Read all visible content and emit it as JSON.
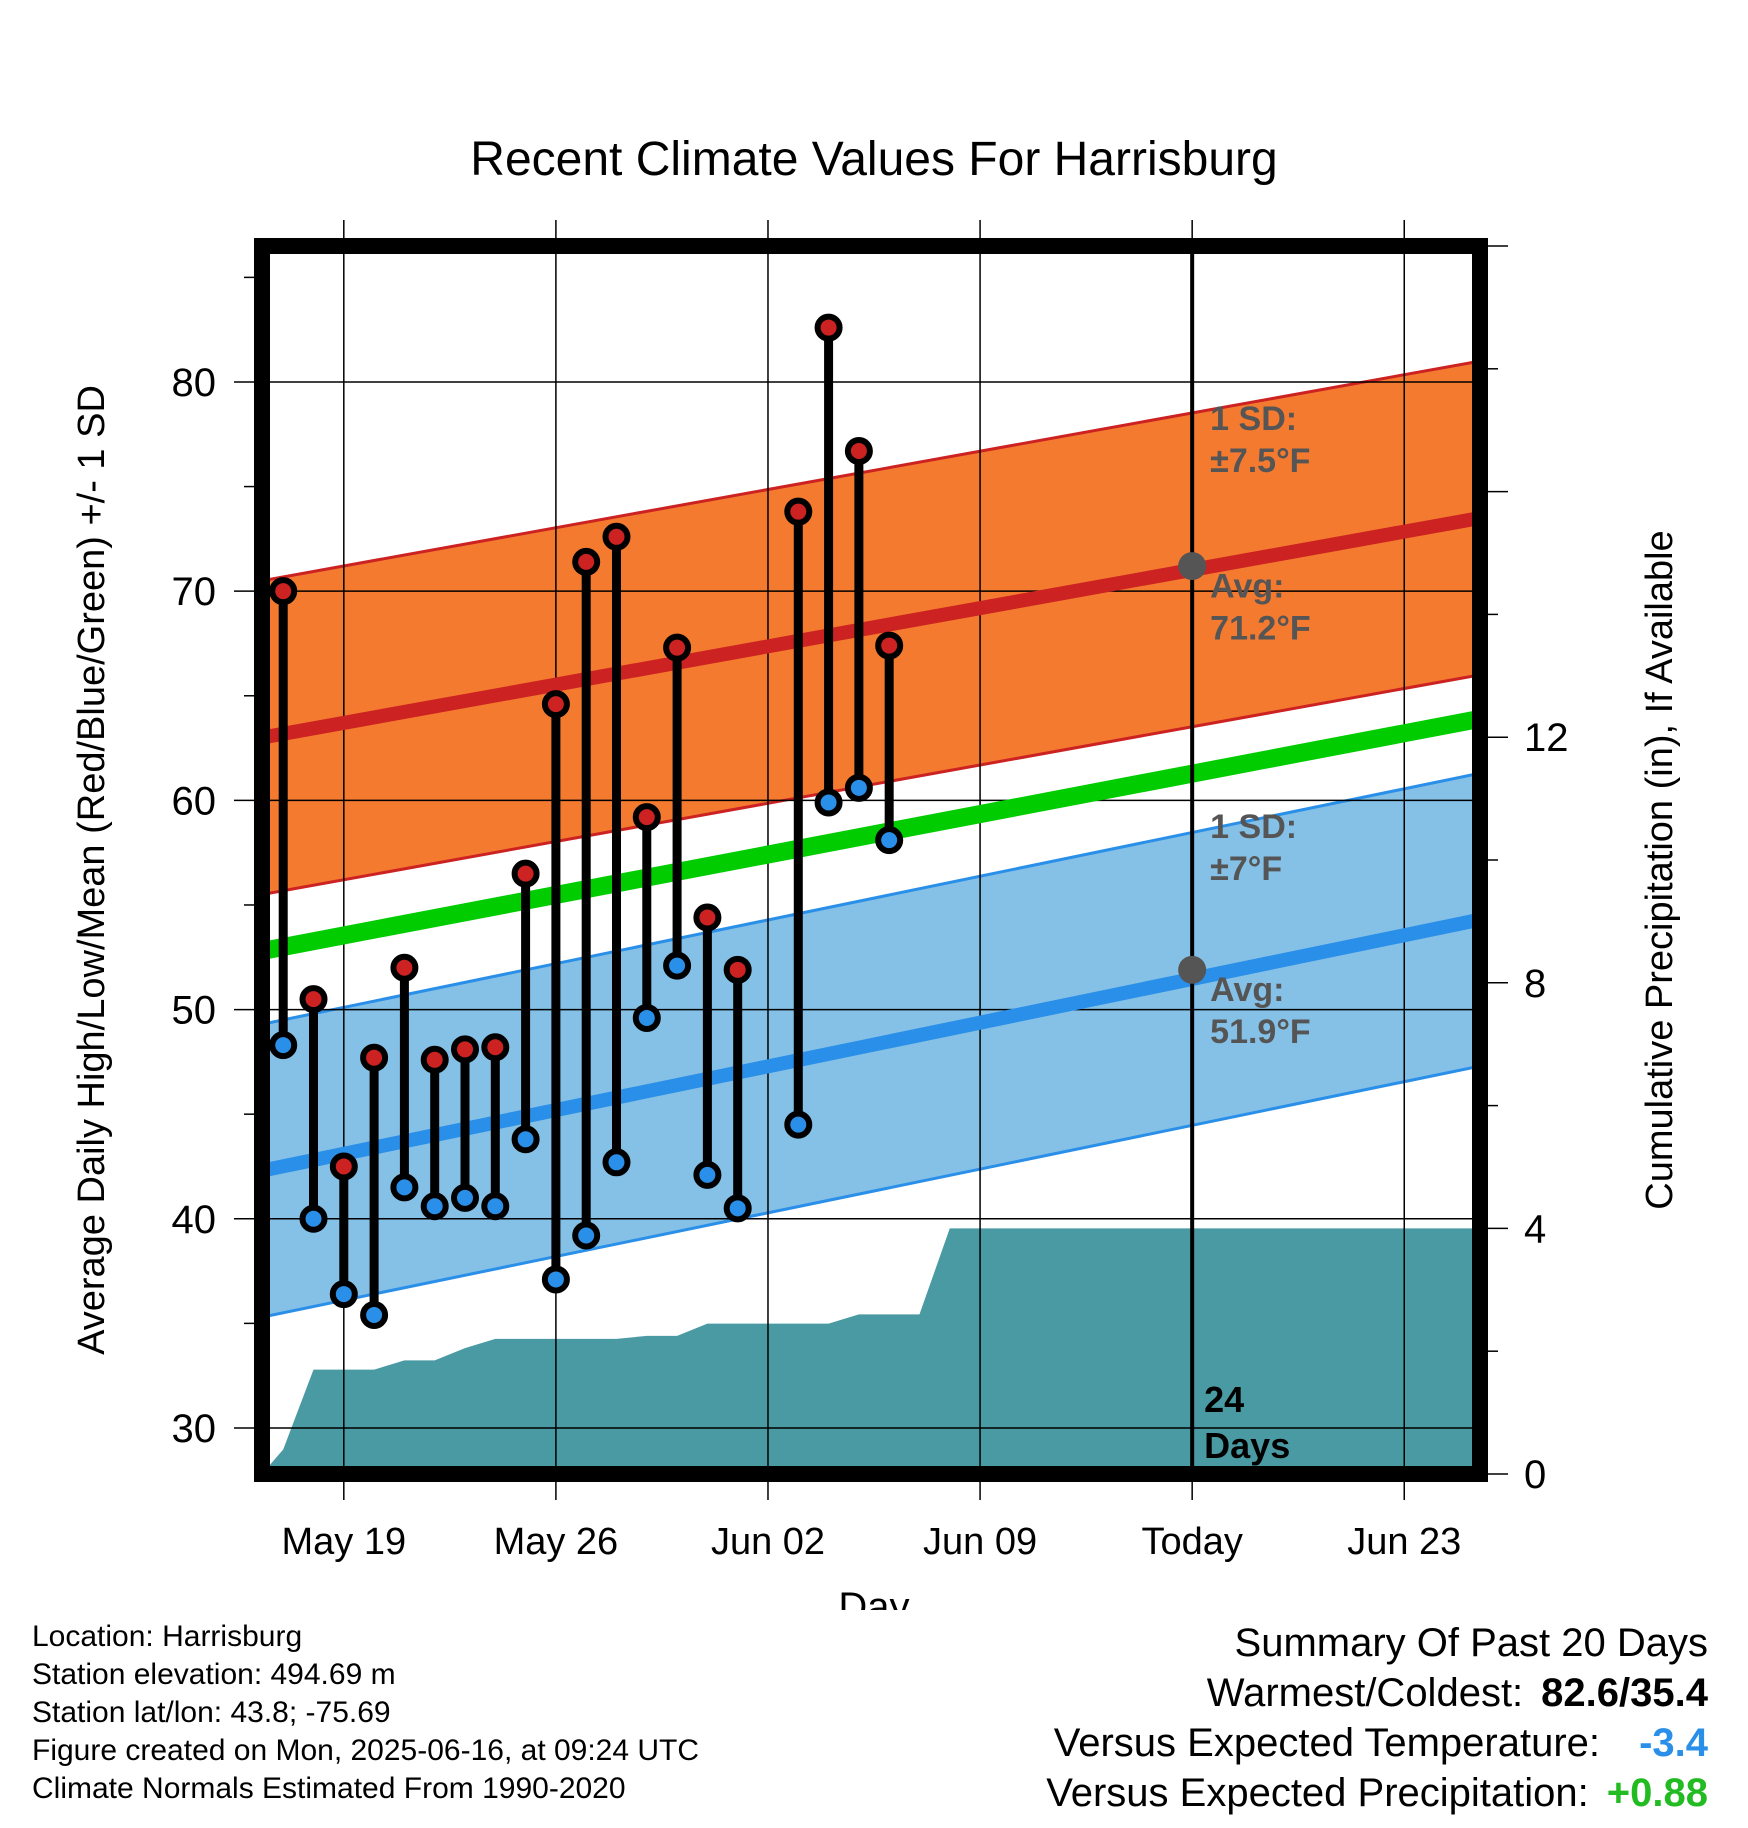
{
  "chart_data": {
    "type": "line",
    "title": "Recent Climate Values For Harrisburg",
    "xlabel": "Day",
    "ylabel": "Average Daily High/Low/Mean (Red/Blue/Green) +/- 1 SD",
    "y2label": "Cumulative Precipitation (in), If Available",
    "x_tick_labels": [
      "May 19",
      "May 26",
      "Jun 02",
      "Jun 09",
      "Today",
      "Jun 23"
    ],
    "x_tick_days": [
      2,
      9,
      16,
      23,
      30,
      37
    ],
    "xlim": [
      -0.7,
      39.5
    ],
    "ylim": [
      27.8,
      86.5
    ],
    "y_ticks": [
      30,
      40,
      50,
      60,
      70,
      80
    ],
    "y2lim": [
      0,
      20
    ],
    "y2_ticks": [
      0,
      4,
      8,
      12
    ],
    "today_day": 30,
    "today_label": "24\nDays",
    "normals": {
      "high_mean_start": 63.0,
      "high_mean_end": 73.5,
      "high_sd": 7.5,
      "low_mean_start": 42.3,
      "low_mean_end": 54.3,
      "low_sd": 7.0,
      "mean_start": 52.8,
      "mean_end": 63.9,
      "today_avg_high": 71.2,
      "today_avg_low": 51.9,
      "high_sd_label": [
        "1 SD:",
        "±7.5°F"
      ],
      "high_avg_label": [
        "Avg:",
        "71.2°F"
      ],
      "low_sd_label": [
        "1 SD:",
        "±7°F"
      ],
      "low_avg_label": [
        "Avg:",
        "51.9°F"
      ]
    },
    "series": [
      {
        "name": "Daily High",
        "color": "#cc2222",
        "days": [
          0,
          1,
          2,
          3,
          4,
          5,
          6,
          7,
          8,
          9,
          10,
          11,
          12,
          13,
          14,
          15,
          17,
          18,
          19,
          20
        ],
        "values": [
          70.0,
          50.5,
          42.5,
          47.7,
          52.0,
          47.6,
          48.1,
          48.2,
          56.5,
          64.6,
          71.4,
          72.6,
          59.2,
          67.3,
          54.4,
          51.9,
          73.8,
          82.6,
          76.7,
          67.4
        ]
      },
      {
        "name": "Daily Low",
        "color": "#2a8fe8",
        "days": [
          0,
          1,
          2,
          3,
          4,
          5,
          6,
          7,
          8,
          9,
          10,
          11,
          12,
          13,
          14,
          15,
          17,
          18,
          19,
          20
        ],
        "values": [
          48.3,
          40.0,
          36.4,
          35.4,
          41.5,
          40.6,
          41.0,
          40.6,
          43.8,
          37.1,
          39.2,
          42.7,
          49.6,
          52.1,
          42.1,
          40.5,
          44.5,
          59.9,
          60.6,
          58.1
        ]
      }
    ],
    "precipitation": {
      "name": "Cumulative Precipitation",
      "color": "#4a9aa3",
      "days": [
        -0.7,
        0,
        1,
        2,
        3,
        4,
        5,
        6,
        7,
        8,
        9,
        10,
        11,
        12,
        13,
        14,
        15,
        16,
        17,
        18,
        19,
        20,
        21,
        22,
        23,
        39.5
      ],
      "values": [
        0,
        0.4,
        1.7,
        1.7,
        1.7,
        1.85,
        1.85,
        2.05,
        2.2,
        2.2,
        2.2,
        2.2,
        2.2,
        2.25,
        2.25,
        2.45,
        2.45,
        2.45,
        2.45,
        2.45,
        2.6,
        2.6,
        2.6,
        4.0,
        4.0,
        4.0
      ]
    }
  },
  "footer": {
    "location": "Location: Harrisburg",
    "elevation": "Station elevation: 494.69 m",
    "latlon": "Station lat/lon: 43.8; -75.69",
    "created": "Figure created on Mon, 2025-06-16, at 09:24 UTC",
    "normals": "Climate Normals Estimated From 1990-2020"
  },
  "summary": {
    "title": "Summary Of Past 20 Days",
    "warmest_coldest_label": "Warmest/Coldest:",
    "warmest_coldest_value": "82.6/35.4",
    "temp_label": "Versus Expected Temperature:",
    "temp_value": "-3.4",
    "temp_color": "#2a8fe8",
    "precip_label": "Versus Expected Precipitation:",
    "precip_value": "+0.88",
    "precip_color": "#22bb22"
  }
}
